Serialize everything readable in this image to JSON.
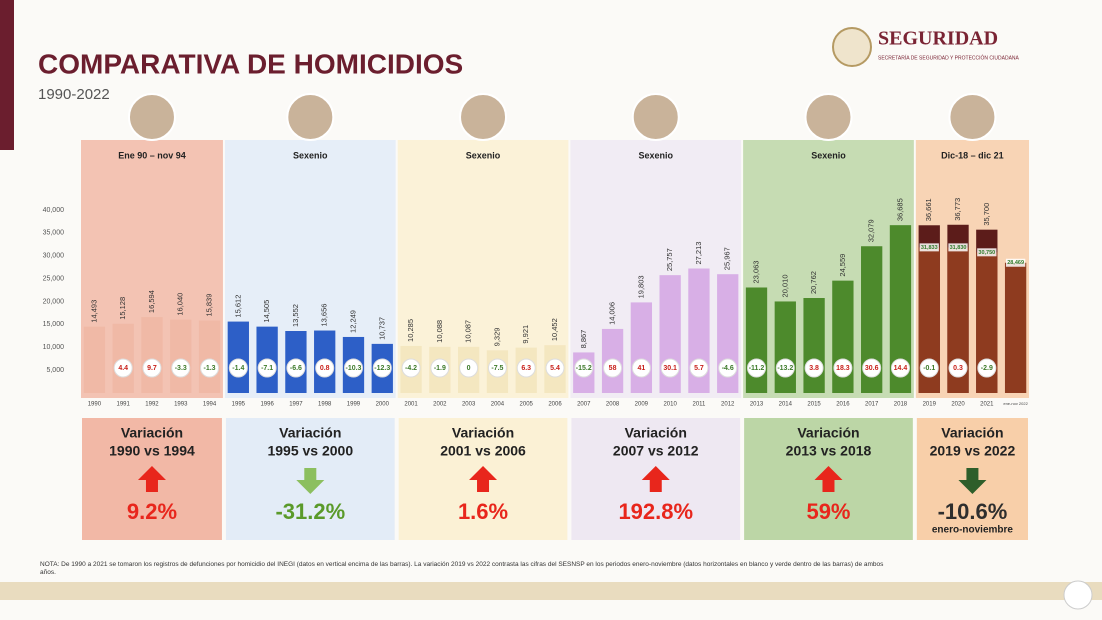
{
  "header": {
    "title": "COMPARATIVA DE HOMICIDIOS",
    "subtitle": "1990-2022",
    "logo": "SEGURIDAD",
    "logo_sub": "SECRETARÍA DE SEGURIDAD Y PROTECCIÓN CIUDADANA"
  },
  "chart_data": {
    "type": "bar",
    "categories": [
      "1990",
      "1991",
      "1992",
      "1993",
      "1994",
      "1995",
      "1996",
      "1997",
      "1998",
      "1999",
      "2000",
      "2001",
      "2002",
      "2003",
      "2004",
      "2005",
      "2006",
      "2007",
      "2008",
      "2009",
      "2010",
      "2011",
      "2012",
      "2013",
      "2014",
      "2015",
      "2016",
      "2017",
      "2018",
      "2019",
      "2020",
      "2021",
      "ene-nov 2022"
    ],
    "values": [
      14493,
      15128,
      16594,
      16040,
      15839,
      15612,
      14505,
      13552,
      13656,
      12249,
      10737,
      10285,
      10088,
      10087,
      9329,
      9921,
      10452,
      8867,
      14006,
      19803,
      25757,
      27213,
      25967,
      23063,
      20010,
      20762,
      24559,
      32079,
      36685,
      36661,
      36773,
      35700,
      null
    ],
    "value_labels": [
      "14,493",
      "15,128",
      "16,594",
      "16,040",
      "15,839",
      "15,612",
      "14,505",
      "13,552",
      "13,656",
      "12,249",
      "10,737",
      "10,285",
      "10,088",
      "10,087",
      "9,329",
      "9,921",
      "10,452",
      "8,867",
      "14,006",
      "19,803",
      "25,757",
      "27,213",
      "25,967",
      "23,063",
      "20,010",
      "20,762",
      "24,559",
      "32,079",
      "36,685",
      "36,661",
      "36,773",
      "35,700",
      null
    ],
    "inner_values": [
      null,
      null,
      null,
      null,
      null,
      null,
      null,
      null,
      null,
      null,
      null,
      null,
      null,
      null,
      null,
      null,
      null,
      null,
      null,
      null,
      null,
      null,
      null,
      null,
      null,
      null,
      null,
      null,
      null,
      31833,
      31830,
      30750,
      28469
    ],
    "inner_value_labels": [
      null,
      null,
      null,
      null,
      null,
      null,
      null,
      null,
      null,
      null,
      null,
      null,
      null,
      null,
      null,
      null,
      null,
      null,
      null,
      null,
      null,
      null,
      null,
      null,
      null,
      null,
      null,
      null,
      null,
      "31,833",
      "31,830",
      "30,750",
      "28,469"
    ],
    "changes": [
      null,
      4.4,
      9.7,
      -3.3,
      -1.3,
      -1.4,
      -7.1,
      -6.6,
      0.8,
      -10.3,
      -12.3,
      -4.2,
      -1.9,
      0,
      -7.5,
      6.3,
      5.4,
      -15.2,
      58,
      41,
      30.1,
      5.7,
      -4.6,
      -11.2,
      -13.2,
      3.8,
      18.3,
      30.6,
      14.4,
      -0.1,
      0.3,
      -2.9,
      null
    ],
    "colors": [
      "#f0b9a6",
      "#f0b9a6",
      "#f0b9a6",
      "#f0b9a6",
      "#f0b9a6",
      "#2d5fc7",
      "#2d5fc7",
      "#2d5fc7",
      "#2d5fc7",
      "#2d5fc7",
      "#2d5fc7",
      "#f4e7c0",
      "#f4e7c0",
      "#f4e7c0",
      "#f4e7c0",
      "#f4e7c0",
      "#f4e7c0",
      "#d8afe6",
      "#d8afe6",
      "#d8afe6",
      "#d8afe6",
      "#d8afe6",
      "#d8afe6",
      "#4d8a2c",
      "#4d8a2c",
      "#4d8a2c",
      "#4d8a2c",
      "#4d8a2c",
      "#4d8a2c",
      "#5c1c1a",
      "#5c1c1a",
      "#5c1c1a",
      "#8e3b1f"
    ],
    "inner_color": "#8e3b1f",
    "ylim": [
      0,
      40000
    ],
    "yticks": [
      {
        "value": 5000,
        "label": "5,000"
      },
      {
        "value": 10000,
        "label": "10,000"
      },
      {
        "value": 15000,
        "label": "15,000"
      },
      {
        "value": 20000,
        "label": "20,000"
      },
      {
        "value": 25000,
        "label": "25,000"
      },
      {
        "value": 30000,
        "label": "30,000"
      },
      {
        "value": 35000,
        "label": "35,000"
      },
      {
        "value": 40000,
        "label": "40,000"
      }
    ],
    "periods": [
      {
        "label": "Ene 90 – nov 94",
        "band_color": "#f3c3b3",
        "panel_color": "#f2b8a6",
        "title": "Variación",
        "comparison": "1990 vs 1994",
        "value": 9.2,
        "value_label": "9.2%"
      },
      {
        "label": "Sexenio",
        "band_color": "#e6eef8",
        "panel_color": "#e3ecf7",
        "title": "Variación",
        "comparison": "1995 vs 2000",
        "value": -31.2,
        "value_label": "-31.2%"
      },
      {
        "label": "Sexenio",
        "band_color": "#fbf2d8",
        "panel_color": "#fbf1d5",
        "title": "Variación",
        "comparison": "2001 vs 2006",
        "value": 1.6,
        "value_label": "1.6%"
      },
      {
        "label": "Sexenio",
        "band_color": "#f1ecf4",
        "panel_color": "#eee8f2",
        "title": "Variación",
        "comparison": "2007 vs 2012",
        "value": 192.8,
        "value_label": "192.8%"
      },
      {
        "label": "Sexenio",
        "band_color": "#c6dcb3",
        "panel_color": "#bcd6a6",
        "title": "Variación",
        "comparison": "2013 vs 2018",
        "value": 59,
        "value_label": "59%"
      },
      {
        "label": "Dic-18 – dic 21",
        "band_color": "#f8d4b5",
        "panel_color": "#f8cfa9",
        "title": "Variación",
        "comparison": "2019 vs 2022",
        "value": -10.6,
        "value_label": "-10.6%",
        "note": "enero-noviembre"
      }
    ]
  },
  "note": "NOTA: De 1990 a 2021 se tomaron los registros de defunciones por homicidio del INEGI (datos en vertical encima de las barras). La variación 2019 vs 2022 contrasta las cifras del SESNSP en los periodos enero-noviembre (datos horizontales en blanco y verde dentro de las barras) de ambos años."
}
